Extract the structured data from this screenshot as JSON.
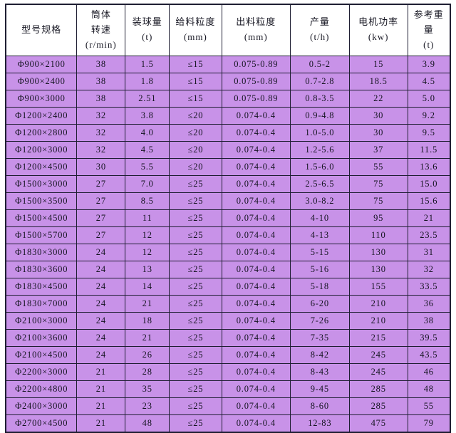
{
  "colors": {
    "row_background": "#c892e8",
    "header_background": "#ffffff",
    "grid_border": "#1e1e32",
    "text": "#141420",
    "page_background": "#ffffff"
  },
  "table": {
    "title": "ball-mill-specification-table",
    "headers": [
      {
        "key": "model",
        "label": "型号规格",
        "lines": [
          "型号规格"
        ]
      },
      {
        "key": "cylinder-speed",
        "label": "筒体转速 (r/min)",
        "lines": [
          "筒体",
          "转速",
          "(r/min)"
        ]
      },
      {
        "key": "ball-load",
        "label": "装球量 (t)",
        "lines": [
          "装球量",
          "(t)"
        ]
      },
      {
        "key": "feed-size",
        "label": "给料粒度 (mm)",
        "lines": [
          "给料粒度",
          "(mm)"
        ]
      },
      {
        "key": "discharge-size",
        "label": "出料粒度 (mm)",
        "lines": [
          "出料粒度",
          "(mm)"
        ]
      },
      {
        "key": "capacity",
        "label": "产量 (t/h)",
        "lines": [
          "产量",
          "(t/h)"
        ]
      },
      {
        "key": "motor-power",
        "label": "电机功率 (kw)",
        "lines": [
          "电机功率",
          "(kw)"
        ]
      },
      {
        "key": "ref-weight",
        "label": "参考重量 (t)",
        "lines": [
          "参考重",
          "量",
          "(t)"
        ]
      }
    ],
    "rows": [
      [
        "Φ900×2100",
        "38",
        "1.5",
        "≤15",
        "0.075-0.89",
        "0.5-2",
        "15",
        "3.9"
      ],
      [
        "Φ900×2400",
        "38",
        "1.8",
        "≤15",
        "0.075-0.89",
        "0.7-2.8",
        "18.5",
        "4.5"
      ],
      [
        "Φ900×3000",
        "38",
        "2.51",
        "≤15",
        "0.075-0.89",
        "0.8-3.5",
        "22",
        "5.0"
      ],
      [
        "Φ1200×2400",
        "32",
        "3.8",
        "≤20",
        "0.074-0.4",
        "0.9-4.8",
        "30",
        "9.2"
      ],
      [
        "Φ1200×2800",
        "32",
        "4.0",
        "≤20",
        "0.074-0.4",
        "1.0-5.0",
        "30",
        "9.5"
      ],
      [
        "Φ1200×3000",
        "32",
        "4.5",
        "≤20",
        "0.074-0.4",
        "1.2-5.6",
        "37",
        "11.5"
      ],
      [
        "Φ1200×4500",
        "30",
        "5.5",
        "≤20",
        "0.074-0.4",
        "1.5-6.0",
        "55",
        "13.6"
      ],
      [
        "Φ1500×3000",
        "27",
        "7.0",
        "≤25",
        "0.074-0.4",
        "2.5-6.5",
        "75",
        "15.0"
      ],
      [
        "Φ1500×3500",
        "27",
        "8.5",
        "≤25",
        "0.074-0.4",
        "3.0-8.2",
        "75",
        "15.6"
      ],
      [
        "Φ1500×4500",
        "27",
        "11",
        "≤25",
        "0.074-0.4",
        "4-10",
        "95",
        "21"
      ],
      [
        "Φ1500×5700",
        "27",
        "12",
        "≤25",
        "0.074-0.4",
        "4-13",
        "110",
        "23.5"
      ],
      [
        "Φ1830×3000",
        "24",
        "12",
        "≤25",
        "0.074-0.4",
        "5-15",
        "130",
        "31"
      ],
      [
        "Φ1830×3600",
        "24",
        "13",
        "≤25",
        "0.074-0.4",
        "5-16",
        "130",
        "32"
      ],
      [
        "Φ1830×4500",
        "24",
        "14",
        "≤25",
        "0.074-0.4",
        "5-18",
        "155",
        "33.5"
      ],
      [
        "Φ1830×7000",
        "24",
        "21",
        "≤25",
        "0.074-0.4",
        "6-20",
        "210",
        "36"
      ],
      [
        "Φ2100×3000",
        "24",
        "18",
        "≤25",
        "0.074-0.4",
        "7-26",
        "210",
        "38"
      ],
      [
        "Φ2100×3600",
        "24",
        "21",
        "≤25",
        "0.074-0.4",
        "7-35",
        "215",
        "39.5"
      ],
      [
        "Φ2100×4500",
        "24",
        "26",
        "≤25",
        "0.074-0.4",
        "8-42",
        "245",
        "43.5"
      ],
      [
        "Φ2200×3000",
        "21",
        "28",
        "≤25",
        "0.074-0.4",
        "8-43",
        "245",
        "46"
      ],
      [
        "Φ2200×4800",
        "21",
        "35",
        "≤25",
        "0.074-0.4",
        "9-45",
        "285",
        "48"
      ],
      [
        "Φ2400×3000",
        "21",
        "23",
        "≤25",
        "0.074-0.4",
        "8-60",
        "285",
        "55"
      ],
      [
        "Φ2700×4500",
        "21",
        "48",
        "≤25",
        "0.074-0.4",
        "12-83",
        "475",
        "79"
      ]
    ]
  }
}
